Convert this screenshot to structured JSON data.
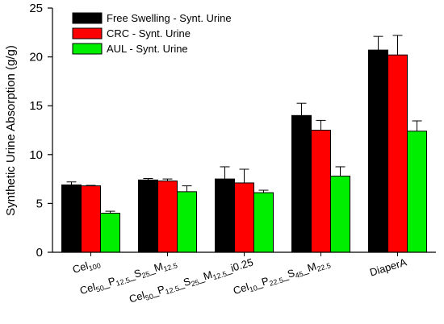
{
  "chart_data": {
    "type": "bar",
    "ylabel": "Synthetic Urine Absorption (g/g)",
    "xlabel": "",
    "ylim": [
      0,
      25
    ],
    "yticks": [
      0,
      5,
      10,
      15,
      20,
      25
    ],
    "grid": false,
    "legend_position": "top-left",
    "categories": [
      {
        "parts": [
          {
            "t": "Cel",
            "sub": false
          },
          {
            "t": "100",
            "sub": true
          }
        ]
      },
      {
        "parts": [
          {
            "t": "Cel",
            "sub": false
          },
          {
            "t": "50",
            "sub": true
          },
          {
            "t": "_P",
            "sub": false
          },
          {
            "t": "12.5",
            "sub": true
          },
          {
            "t": "_S",
            "sub": false
          },
          {
            "t": "25",
            "sub": true
          },
          {
            "t": "_M",
            "sub": false
          },
          {
            "t": "12.5",
            "sub": true
          }
        ]
      },
      {
        "parts": [
          {
            "t": "Cel",
            "sub": false
          },
          {
            "t": "50",
            "sub": true
          },
          {
            "t": "_P",
            "sub": false
          },
          {
            "t": "12.5",
            "sub": true
          },
          {
            "t": "_S",
            "sub": false
          },
          {
            "t": "25",
            "sub": true
          },
          {
            "t": "_M",
            "sub": false
          },
          {
            "t": "12.5",
            "sub": true
          },
          {
            "t": "_i0.25",
            "sub": false
          }
        ]
      },
      {
        "parts": [
          {
            "t": "Cel",
            "sub": false
          },
          {
            "t": "10",
            "sub": true
          },
          {
            "t": "_P",
            "sub": false
          },
          {
            "t": "22.5",
            "sub": true
          },
          {
            "t": "_S",
            "sub": false
          },
          {
            "t": "45",
            "sub": true
          },
          {
            "t": "_M",
            "sub": false
          },
          {
            "t": "22.5",
            "sub": true
          }
        ]
      },
      {
        "parts": [
          {
            "t": "DiaperA",
            "sub": false
          }
        ]
      }
    ],
    "series": [
      {
        "name": "Free Swelling - Synt. Urine",
        "color": "#000000",
        "values": [
          6.9,
          7.4,
          7.5,
          14.0,
          20.7
        ],
        "errors": [
          0.3,
          0.15,
          1.25,
          1.25,
          1.4
        ]
      },
      {
        "name": "CRC - Synt. Urine",
        "color": "#ff0000",
        "values": [
          6.8,
          7.3,
          7.1,
          12.5,
          20.2
        ],
        "errors": [
          0.05,
          0.2,
          1.4,
          1.0,
          2.0
        ]
      },
      {
        "name": "AUL - Synt. Urine",
        "color": "#00ee00",
        "values": [
          4.0,
          6.2,
          6.1,
          7.8,
          12.4
        ],
        "errors": [
          0.2,
          0.6,
          0.25,
          0.95,
          1.05
        ]
      }
    ]
  }
}
